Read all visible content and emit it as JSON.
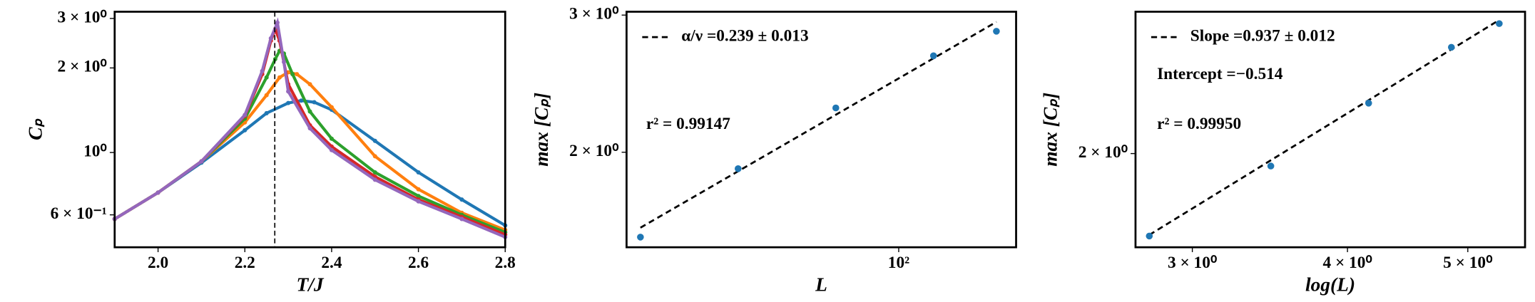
{
  "chart_data": [
    {
      "type": "line",
      "xlabel": "T/J",
      "ylabel": "Cₚ",
      "yscale": "log",
      "xscale": "linear",
      "xlim": [
        1.9,
        2.8
      ],
      "ylim": [
        0.46,
        3.17
      ],
      "xticks": [
        {
          "value": 2.0,
          "label": "2.0"
        },
        2.2,
        2.4,
        2.6,
        2.8
      ],
      "yticks": [
        {
          "value": 0.6,
          "label": "6 × 10⁻¹"
        },
        {
          "value": 1,
          "label": "10⁰"
        },
        {
          "value": 2,
          "label": "2 × 10⁰"
        },
        {
          "value": 3,
          "label": "3 × 10⁰"
        }
      ],
      "vline": 2.269,
      "series": [
        {
          "color": "#1f77b4",
          "x": [
            1.9,
            2.0,
            2.1,
            2.2,
            2.25,
            2.3,
            2.33,
            2.36,
            2.4,
            2.5,
            2.6,
            2.7,
            2.8
          ],
          "values": [
            0.58,
            0.72,
            0.92,
            1.2,
            1.38,
            1.5,
            1.53,
            1.51,
            1.42,
            1.1,
            0.85,
            0.68,
            0.55
          ]
        },
        {
          "color": "#ff7f0e",
          "x": [
            1.9,
            2.0,
            2.1,
            2.2,
            2.25,
            2.28,
            2.3,
            2.32,
            2.35,
            2.4,
            2.5,
            2.6,
            2.7,
            2.8
          ],
          "values": [
            0.58,
            0.72,
            0.93,
            1.28,
            1.6,
            1.85,
            1.93,
            1.9,
            1.75,
            1.45,
            0.97,
            0.74,
            0.61,
            0.53
          ]
        },
        {
          "color": "#2ca02c",
          "x": [
            1.9,
            2.0,
            2.1,
            2.2,
            2.25,
            2.27,
            2.28,
            2.29,
            2.31,
            2.35,
            2.4,
            2.5,
            2.6,
            2.7,
            2.8
          ],
          "values": [
            0.58,
            0.72,
            0.93,
            1.32,
            1.85,
            2.15,
            2.3,
            2.25,
            1.9,
            1.4,
            1.12,
            0.85,
            0.7,
            0.6,
            0.52
          ]
        },
        {
          "color": "#d62728",
          "x": [
            1.9,
            2.0,
            2.1,
            2.2,
            2.24,
            2.26,
            2.27,
            2.28,
            2.3,
            2.35,
            2.4,
            2.5,
            2.6,
            2.7,
            2.8
          ],
          "values": [
            0.58,
            0.72,
            0.93,
            1.35,
            1.9,
            2.5,
            2.75,
            2.5,
            1.75,
            1.25,
            1.05,
            0.82,
            0.68,
            0.59,
            0.51
          ]
        },
        {
          "color": "#9467bd",
          "x": [
            1.9,
            2.0,
            2.1,
            2.2,
            2.24,
            2.26,
            2.275,
            2.29,
            2.3,
            2.35,
            2.4,
            2.5,
            2.6,
            2.7,
            2.8
          ],
          "values": [
            0.58,
            0.72,
            0.93,
            1.36,
            1.95,
            2.55,
            2.9,
            2.1,
            1.65,
            1.22,
            1.02,
            0.8,
            0.67,
            0.58,
            0.5
          ]
        }
      ]
    },
    {
      "type": "scatter",
      "xlabel": "L",
      "ylabel": "max [Cₚ]",
      "xscale": "log",
      "yscale": "log",
      "xlim": [
        14.5,
        230
      ],
      "ylim": [
        1.51,
        3.03
      ],
      "xticks": [
        {
          "value": 100,
          "label": "10²"
        }
      ],
      "yticks": [
        {
          "value": 2,
          "label": "2 × 10⁰"
        },
        {
          "value": 3,
          "label": "3 × 10⁰"
        }
      ],
      "points": {
        "color": "#1f77b4",
        "x": [
          16,
          32,
          64,
          128,
          200
        ],
        "values": [
          1.556,
          1.905,
          2.28,
          2.66,
          2.86
        ]
      },
      "fit": {
        "name": "α/ν =0.239 ± 0.013",
        "x": [
          16,
          200
        ],
        "values": [
          1.6,
          2.94
        ]
      },
      "annotations": [
        "r² = 0.99147"
      ]
    },
    {
      "type": "scatter",
      "xlabel": "log(L)",
      "ylabel": "max [Cₚ]",
      "xscale": "log",
      "yscale": "log",
      "xlim": [
        2.7,
        5.56
      ],
      "ylim": [
        1.53,
        3.0
      ],
      "xticks": [
        {
          "value": 3,
          "label": "3 × 10⁰"
        },
        {
          "value": 4,
          "label": "4 × 10⁰"
        },
        {
          "value": 5,
          "label": "5 × 10⁰"
        }
      ],
      "yticks": [
        {
          "value": 2,
          "label": "2 × 10⁰"
        }
      ],
      "points": {
        "color": "#1f77b4",
        "x": [
          2.77,
          3.47,
          4.16,
          4.85,
          5.3
        ],
        "values": [
          1.58,
          1.93,
          2.31,
          2.71,
          2.9
        ]
      },
      "fit": {
        "name": "Slope =0.937 ± 0.012",
        "x": [
          2.77,
          5.3
        ],
        "values": [
          1.585,
          2.93
        ]
      },
      "annotations": [
        "Intercept =−0.514",
        "r² = 0.99950"
      ]
    }
  ]
}
